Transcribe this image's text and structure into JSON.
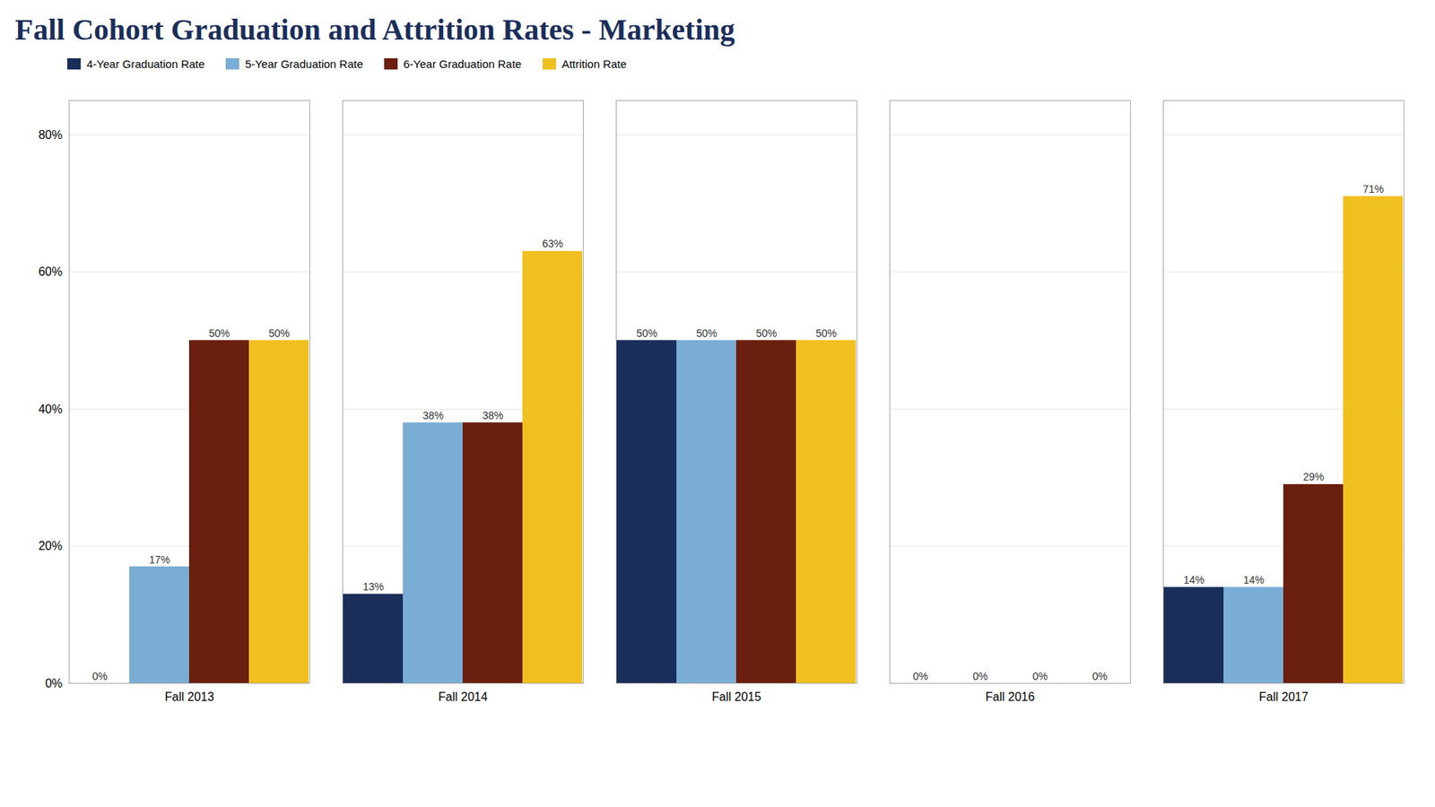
{
  "chart_data": {
    "type": "bar",
    "title": "Fall Cohort Graduation and Attrition Rates - Marketing",
    "categories": [
      "Fall 2013",
      "Fall 2014",
      "Fall 2015",
      "Fall 2016",
      "Fall 2017"
    ],
    "series": [
      {
        "name": "4-Year Graduation Rate",
        "color": "#1a2e5a",
        "values": [
          0,
          13,
          50,
          0,
          14
        ],
        "value_labels": [
          "0%",
          "13%",
          "50%",
          "0%",
          "14%"
        ]
      },
      {
        "name": "5-Year Graduation Rate",
        "color": "#7aadd4",
        "values": [
          17,
          38,
          50,
          0,
          14
        ],
        "value_labels": [
          "17%",
          "38%",
          "50%",
          "0%",
          "14%"
        ]
      },
      {
        "name": "6-Year Graduation Rate",
        "color": "#6b1f0e",
        "values": [
          50,
          38,
          50,
          0,
          29
        ],
        "value_labels": [
          "50%",
          "38%",
          "50%",
          "0%",
          "29%"
        ]
      },
      {
        "name": "Attrition Rate",
        "color": "#f0c020",
        "values": [
          50,
          63,
          50,
          0,
          71
        ],
        "value_labels": [
          "50%",
          "63%",
          "50%",
          "0%",
          "71%"
        ]
      }
    ],
    "ylim": [
      0,
      85
    ],
    "yticks": [
      {
        "value": 0,
        "label": "0%"
      },
      {
        "value": 20,
        "label": "20%"
      },
      {
        "value": 40,
        "label": "40%"
      },
      {
        "value": 60,
        "label": "60%"
      },
      {
        "value": 80,
        "label": "80%"
      }
    ],
    "grid": true,
    "legend": "upper left",
    "data_labels": true
  }
}
